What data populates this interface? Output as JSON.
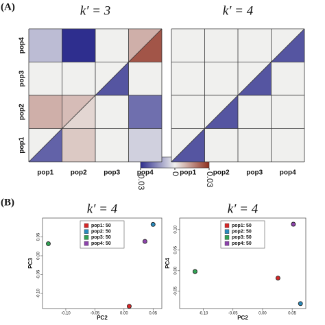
{
  "panel_labels": [
    "(A)",
    "(B)"
  ],
  "colorbar": {
    "zlim": [
      -0.03,
      0.03
    ],
    "ticks": [
      -0.03,
      0,
      0.03
    ],
    "colors": [
      "#2e2e8e",
      "#f0f0ee",
      "#8e2e1e"
    ]
  },
  "chart_data": [
    {
      "type": "heatmap",
      "title": "k′ = 3",
      "x_categories": [
        "pop1",
        "pop2",
        "pop3",
        "pop4"
      ],
      "y_categories": [
        "pop1",
        "pop2",
        "pop3",
        "pop4"
      ],
      "values": [
        [
          0,
          0.006,
          0,
          -0.005
        ],
        [
          0.01,
          0.008,
          0,
          -0.02
        ],
        [
          0,
          0,
          0,
          0
        ],
        [
          -0.008,
          -0.03,
          0,
          0.01
        ]
      ],
      "diagonal_lower": [
        -0.022,
        0.004,
        -0.024,
        0.024
      ]
    },
    {
      "type": "heatmap",
      "title": "k′ = 4",
      "x_categories": [
        "pop1",
        "pop2",
        "pop3",
        "pop4"
      ],
      "values": [
        [
          0,
          0,
          0,
          0
        ],
        [
          0,
          0,
          0,
          0
        ],
        [
          0,
          0,
          0,
          0
        ],
        [
          0,
          0,
          0,
          0
        ]
      ],
      "diagonal_lower": [
        -0.024,
        -0.024,
        -0.024,
        -0.024
      ]
    },
    {
      "type": "scatter",
      "title": "k′ = 4",
      "x_label": "PC2",
      "y_label": "PC3",
      "xlim": [
        -0.14,
        0.065
      ],
      "ylim": [
        -0.14,
        0.1
      ],
      "xticks": [
        {
          "value": -0.1,
          "label": "-0.10"
        },
        -0.05,
        {
          "value": 0,
          "label": "0.00"
        },
        0.05
      ],
      "yticks": [
        {
          "value": -0.1,
          "label": "-0.10"
        },
        -0.05,
        {
          "value": 0,
          "label": "0.00"
        },
        0.05
      ],
      "series": [
        {
          "name": "pop1: 50",
          "color": "#d62728",
          "x": [
            0.009
          ],
          "values": [
            -0.134
          ]
        },
        {
          "name": "pop2: 50",
          "color": "#2b8cbe",
          "x": [
            0.05
          ],
          "values": [
            0.083
          ]
        },
        {
          "name": "pop3: 50",
          "color": "#31a354",
          "x": [
            -0.13
          ],
          "values": [
            0.032
          ]
        },
        {
          "name": "pop4: 50",
          "color": "#8e44ad",
          "x": [
            0.036
          ],
          "values": [
            0.038
          ]
        }
      ]
    },
    {
      "type": "scatter",
      "title": "k′ = 4",
      "x_label": "PC2",
      "y_label": "PC4",
      "xlim": [
        -0.14,
        0.073
      ],
      "ylim": [
        -0.092,
        0.128
      ],
      "xticks": [
        {
          "value": -0.1,
          "label": "-0.10"
        },
        -0.05,
        {
          "value": 0,
          "label": "0.00"
        },
        0.05
      ],
      "yticks": [
        -0.05,
        {
          "value": 0,
          "label": "0.00"
        },
        0.05,
        {
          "value": 0.1,
          "label": "0.10"
        }
      ],
      "series": [
        {
          "name": "pop1: 50",
          "color": "#d62728",
          "x": [
            0.026
          ],
          "values": [
            -0.018
          ]
        },
        {
          "name": "pop2: 50",
          "color": "#2b8cbe",
          "x": [
            0.064
          ],
          "values": [
            -0.08
          ]
        },
        {
          "name": "pop3: 50",
          "color": "#31a354",
          "x": [
            -0.114
          ],
          "values": [
            -0.002
          ]
        },
        {
          "name": "pop4: 50",
          "color": "#8e44ad",
          "x": [
            0.052
          ],
          "values": [
            0.113
          ]
        }
      ]
    }
  ]
}
